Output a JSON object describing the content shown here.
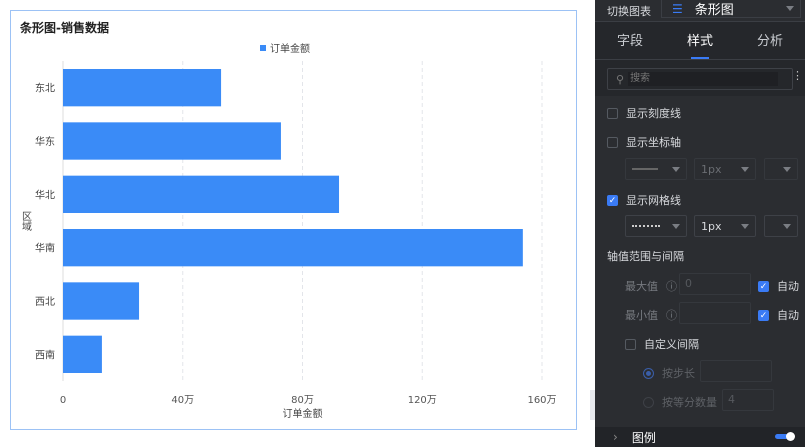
{
  "chart": {
    "title": "条形图-销售数据"
  },
  "chart_data": {
    "type": "bar",
    "orientation": "horizontal",
    "title": "条形图-销售数据",
    "categories": [
      "东北",
      "华东",
      "华北",
      "华南",
      "西北",
      "西南"
    ],
    "series": [
      {
        "name": "订单金额",
        "values": [
          528000,
          728000,
          922000,
          1536000,
          254000,
          130000
        ]
      }
    ],
    "xlabel": "订单金额",
    "ylabel": "区域",
    "xlim": [
      0,
      1600000
    ],
    "xticks": [
      "0",
      "40万",
      "80万",
      "120万",
      "160万"
    ],
    "xtick_values": [
      0,
      400000,
      800000,
      1200000,
      1600000
    ],
    "grid": "vertical dashed",
    "legend": "top",
    "color": "#3a8bf7"
  },
  "panel": {
    "switch_label": "切换图表",
    "chart_type": "条形图",
    "tabs": [
      "字段",
      "样式",
      "分析"
    ],
    "active_tab": "样式",
    "search_placeholder": "搜索",
    "show_ticks": "显示刻度线",
    "show_axis": "显示坐标轴",
    "show_grid": "显示网格线",
    "px1": "1px",
    "px2": "1px",
    "axis_range": "轴值范围与间隔",
    "max_label": "最大值",
    "max_value": "0",
    "min_label": "最小值",
    "auto1": "自动",
    "auto2": "自动",
    "custom_interval": "自定义间隔",
    "by_step": "按步长",
    "by_count": "按等分数量",
    "count_value": "4",
    "legend_section": "图例"
  },
  "colors": {
    "accent": "#3a7bf5",
    "bar": "#3a8bf7",
    "panel_bg": "#2b2d31"
  }
}
